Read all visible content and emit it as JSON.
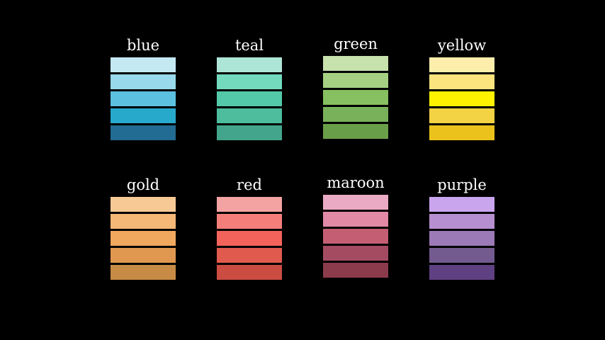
{
  "palettes": [
    {
      "name": "blue",
      "colors": [
        "#c4e9f3",
        "#98d9ec",
        "#5cc0e0",
        "#27a9cc",
        "#226b92"
      ]
    },
    {
      "name": "teal",
      "colors": [
        "#ade6d7",
        "#73dabe",
        "#53c9a9",
        "#4dbd9e",
        "#43a58c"
      ]
    },
    {
      "name": "green",
      "colors": [
        "#c8e2ad",
        "#a6d183",
        "#86c060",
        "#79b15a",
        "#6a9f49"
      ]
    },
    {
      "name": "yellow",
      "colors": [
        "#fdeeac",
        "#fbe37e",
        "#fff200",
        "#f3d243",
        "#ebc21c"
      ]
    },
    {
      "name": "gold",
      "colors": [
        "#f7c995",
        "#f6b877",
        "#f0a85e",
        "#e09850",
        "#c78b45"
      ]
    },
    {
      "name": "red",
      "colors": [
        "#f4a3a3",
        "#f47e7a",
        "#f2645b",
        "#e15a4e",
        "#cb4d42"
      ]
    },
    {
      "name": "maroon",
      "colors": [
        "#ebaac3",
        "#e289a6",
        "#c45f73",
        "#a44b62",
        "#8c3b4c"
      ]
    },
    {
      "name": "purple",
      "colors": [
        "#c9a5ee",
        "#b68fd0",
        "#9c79b7",
        "#735a8f",
        "#5f4082"
      ]
    }
  ]
}
